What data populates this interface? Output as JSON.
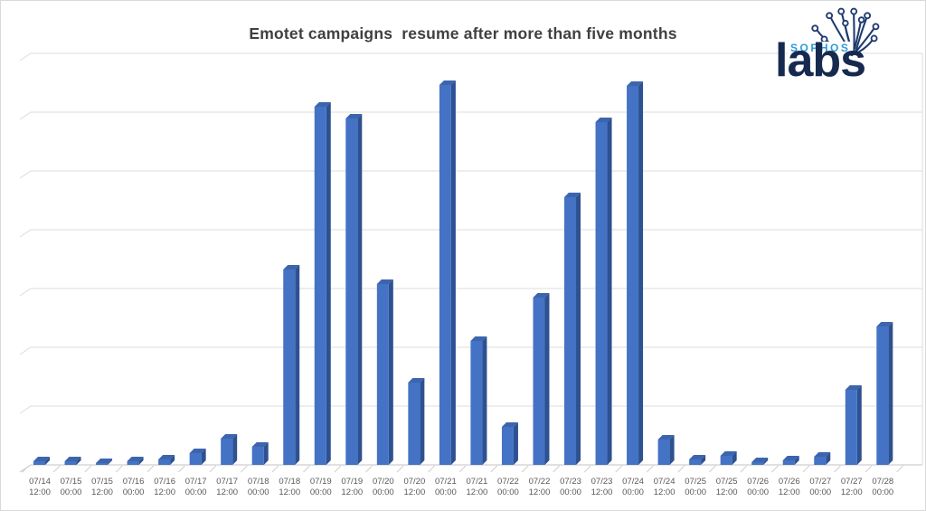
{
  "page": {
    "background_color": "#ffffff",
    "border_color": "#d9d9d9"
  },
  "header": {
    "title": "Emotet campaigns  resume after more than five months",
    "title_color": "#404040"
  },
  "logo": {
    "sophos_label": "SOPHOS",
    "labs_label": "labs",
    "sophos_color": "#2e9cd9",
    "labs_color": "#16294f",
    "brain_icon_color": "#1e3a6e"
  },
  "chart_data": {
    "type": "bar",
    "style": "3d-column",
    "title": "Emotet campaigns  resume after more than five months",
    "xlabel": "",
    "ylabel": "",
    "y_axis_tick_labels_visible": false,
    "legend": "none",
    "grid": "horizontal, 7 intervals (8 lines), unlabeled",
    "note": "No y-axis scale shown; values are relative bar heights as % of plot height",
    "categories": [
      "07/14 12:00",
      "07/15 00:00",
      "07/15 12:00",
      "07/16 00:00",
      "07/16 12:00",
      "07/17 00:00",
      "07/17 12:00",
      "07/18 00:00",
      "07/18 12:00",
      "07/19 00:00",
      "07/19 12:00",
      "07/20 00:00",
      "07/20 12:00",
      "07/21 00:00",
      "07/21 12:00",
      "07/22 00:00",
      "07/22 12:00",
      "07/23 00:00",
      "07/23 12:00",
      "07/24 00:00",
      "07/24 12:00",
      "07/25 00:00",
      "07/25 12:00",
      "07/26 00:00",
      "07/26 12:00",
      "07/27 00:00",
      "07/27 12:00",
      "07/28 00:00"
    ],
    "values_relative_pct": [
      0.9,
      0.9,
      0.4,
      0.9,
      1.3,
      2.9,
      6.4,
      4.4,
      47.5,
      87.0,
      84.2,
      44.0,
      20.0,
      92.3,
      30.1,
      9.2,
      40.7,
      65.1,
      83.3,
      92.1,
      6.2,
      1.3,
      2.2,
      0.7,
      1.1,
      2.0,
      18.2,
      33.6
    ],
    "colors": {
      "bar_front": "#4472c4",
      "bar_side": "#2d5191",
      "bar_top": "#3c65ad",
      "gridline": "#dcdcdc",
      "axis_line": "#cfcfcf",
      "axis_label": "#595959"
    }
  }
}
